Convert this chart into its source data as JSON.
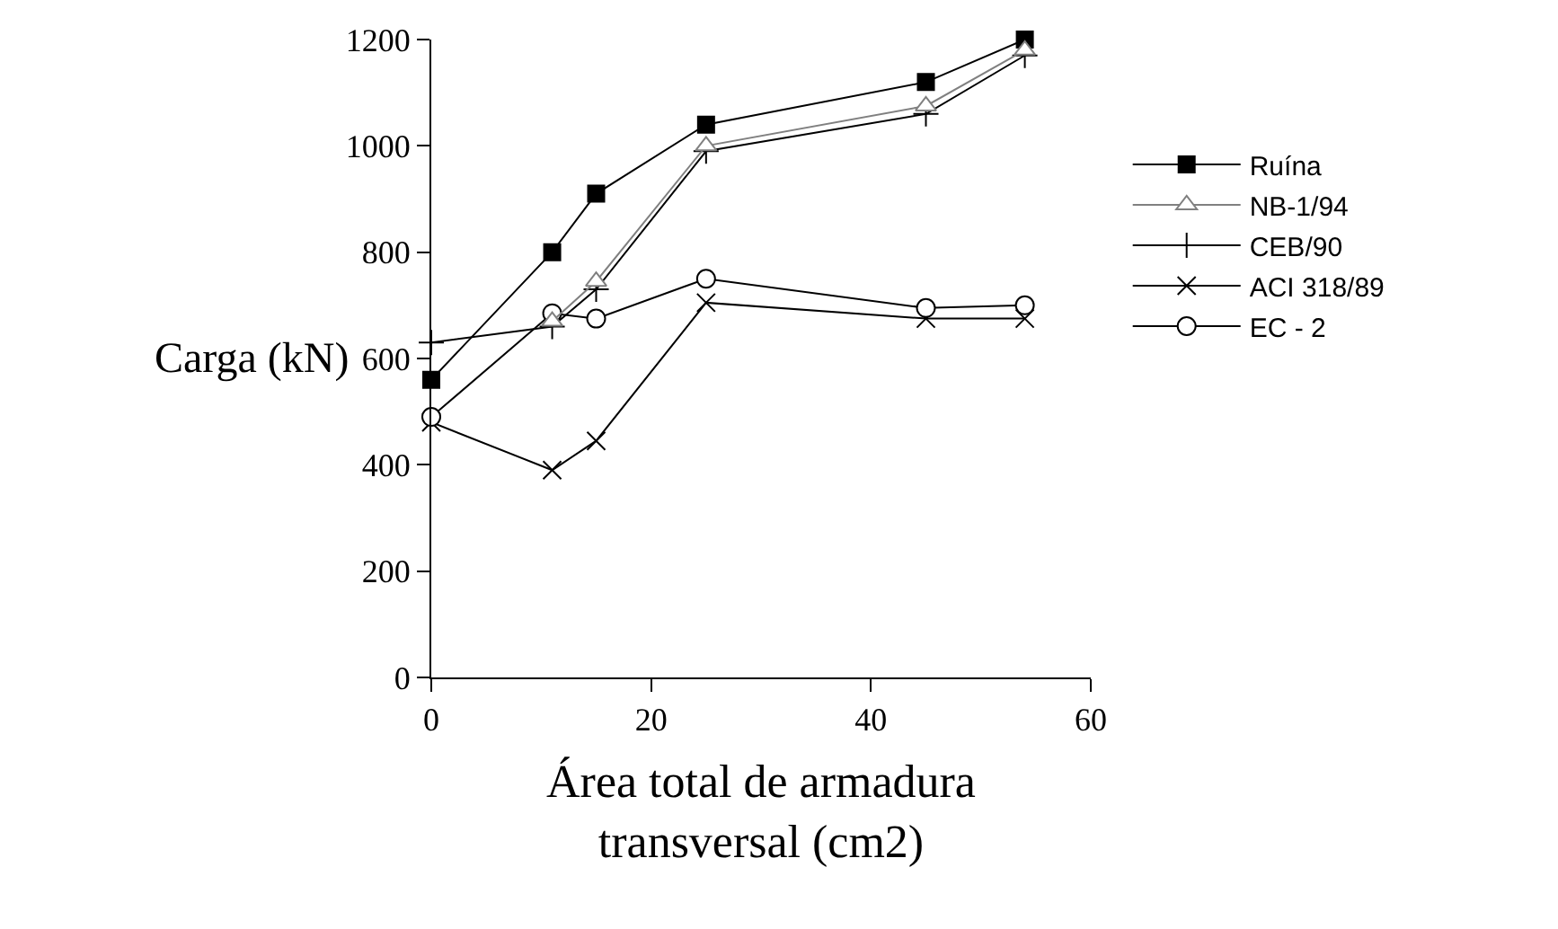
{
  "chart_data": {
    "type": "line",
    "xlabel": "Área total de armadura\ntransversal (cm2)",
    "ylabel": "Carga (kN)",
    "x": [
      0,
      11,
      15,
      25,
      45,
      54
    ],
    "xlim": [
      0,
      60
    ],
    "xticks": [
      0,
      20,
      40,
      60
    ],
    "ylim": [
      0,
      1200
    ],
    "yticks": [
      0,
      200,
      400,
      600,
      800,
      1000,
      1200
    ],
    "legend": "right",
    "line_style": "solid",
    "series": [
      {
        "name": "Ruína",
        "color": "#000000",
        "marker": "square",
        "values": [
          560,
          800,
          910,
          1040,
          1120,
          1200
        ]
      },
      {
        "name": "NB-1/94",
        "color": "#808080",
        "marker": "triangle",
        "values": [
          null,
          670,
          745,
          1000,
          1075,
          1180
        ]
      },
      {
        "name": "CEB/90",
        "color": "#000000",
        "marker": "cross",
        "values": [
          630,
          660,
          730,
          990,
          1060,
          1170
        ]
      },
      {
        "name": "ACI 318/89",
        "color": "#000000",
        "marker": "x",
        "values": [
          480,
          390,
          445,
          705,
          675,
          675
        ]
      },
      {
        "name": "EC - 2",
        "color": "#000000",
        "marker": "circle",
        "values": [
          490,
          685,
          675,
          750,
          695,
          700
        ]
      }
    ]
  }
}
